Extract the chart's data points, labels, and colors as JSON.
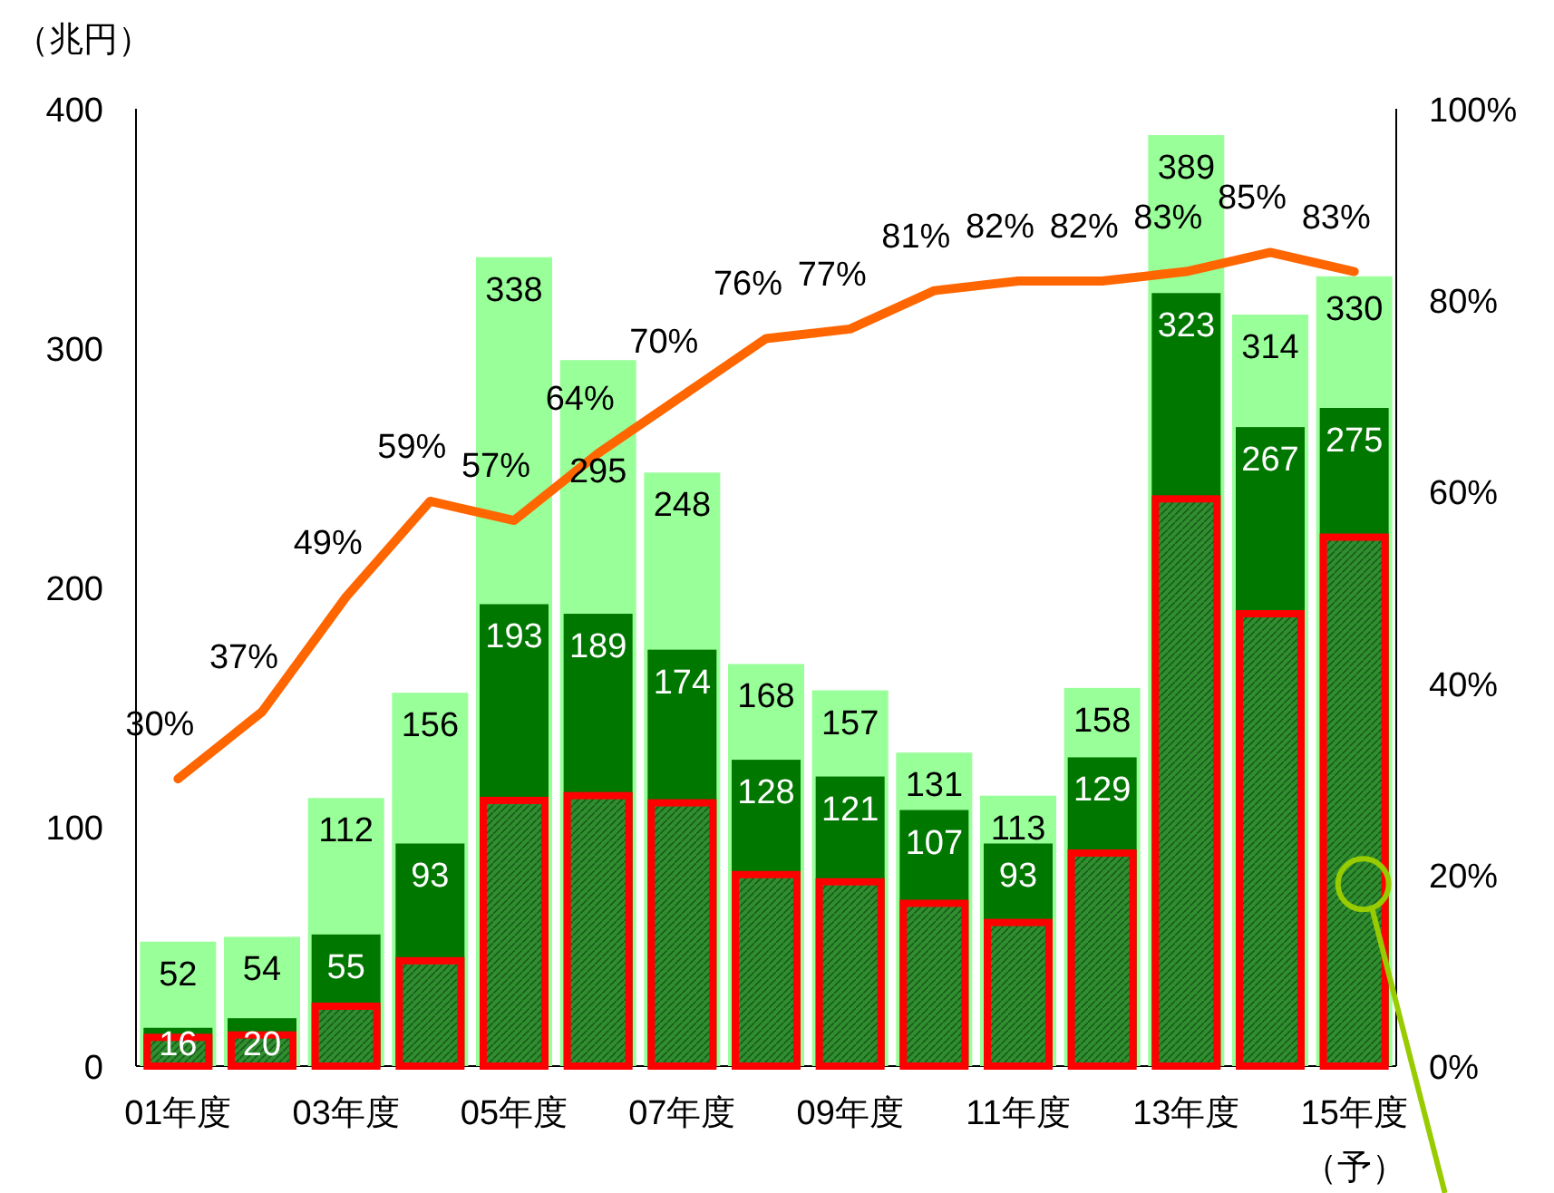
{
  "chart_data": {
    "type": "bar",
    "ylabel": "（兆円）",
    "categories": [
      "01年度",
      null,
      "03年度",
      null,
      "05年度",
      null,
      "07年度",
      null,
      "09年度",
      null,
      "11年度",
      null,
      "13年度",
      null,
      "15年度（予）"
    ],
    "ylim": [
      0,
      400
    ],
    "yticks": [
      0,
      100,
      200,
      300,
      400
    ],
    "y2lim": [
      0,
      100
    ],
    "y2ticks": [
      {
        "value": 0,
        "label": "0%"
      },
      {
        "value": 20,
        "label": "20%"
      },
      {
        "value": 40,
        "label": "40%"
      },
      {
        "value": 60,
        "label": "60%"
      },
      {
        "value": 80,
        "label": "80%"
      },
      {
        "value": 100,
        "label": "100%"
      }
    ],
    "grid": false,
    "legend": false,
    "series": [
      {
        "color": "#99ff99",
        "values": [
          52,
          54,
          112,
          156,
          338,
          295,
          248,
          168,
          157,
          131,
          113,
          158,
          389,
          314,
          330
        ],
        "value_labels": [
          "52",
          "54",
          "112",
          "156",
          "338",
          "295",
          "248",
          "168",
          "157",
          "131",
          "113",
          "158",
          "389",
          "314",
          "330"
        ]
      },
      {
        "color": "#007800",
        "values": [
          16,
          20,
          55,
          93,
          193,
          189,
          174,
          128,
          121,
          107,
          93,
          129,
          323,
          267,
          275
        ],
        "value_labels": [
          "16",
          "20",
          "55",
          "93",
          "193",
          "189",
          "174",
          "128",
          "121",
          "107",
          "93",
          "129",
          "323",
          "267",
          "275"
        ]
      },
      {
        "color": "#ff0000",
        "values": [
          12,
          13,
          25,
          44,
          111,
          113,
          110,
          80,
          77,
          68,
          60,
          89,
          237,
          189,
          221
        ]
      },
      {
        "type": "line",
        "axis": "y2",
        "color": "#ff6600",
        "values": [
          30,
          37,
          49,
          59,
          57,
          64,
          70,
          76,
          77,
          81,
          82,
          82,
          83,
          85,
          83
        ],
        "value_labels": [
          "30%",
          "37%",
          "49%",
          "59%",
          "57%",
          "64%",
          "70%",
          "76%",
          "77%",
          "81%",
          "82%",
          "82%",
          "83%",
          "85%",
          "83%"
        ]
      }
    ]
  }
}
